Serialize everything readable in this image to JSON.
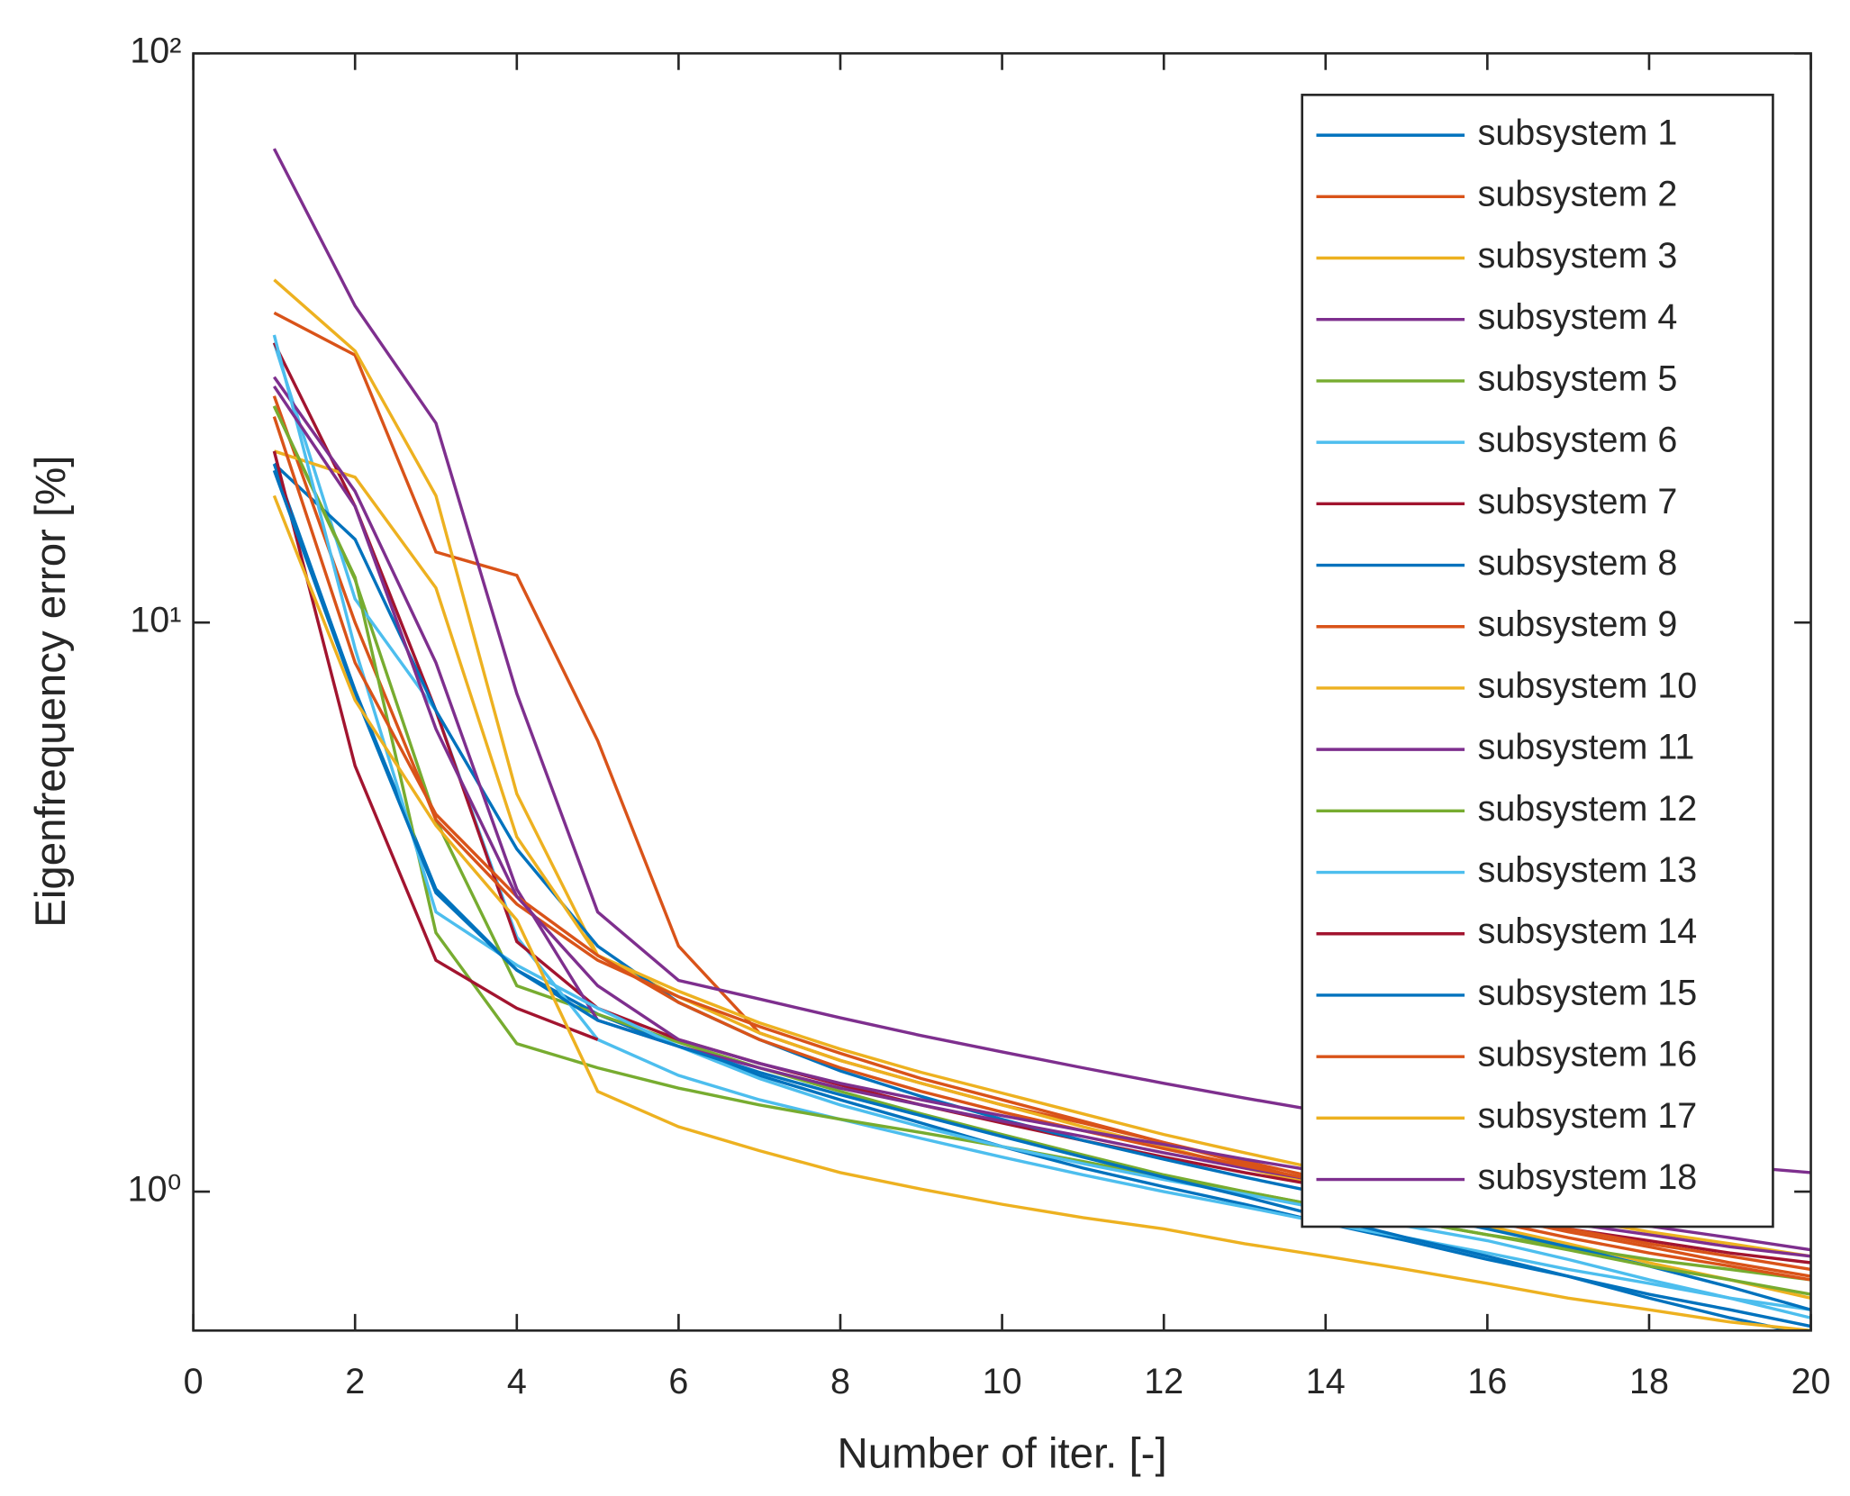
{
  "chart_data": {
    "type": "line",
    "xlabel": "Number of iter. [-]",
    "ylabel": "Eigenfrequency error [%]",
    "x": [
      1,
      2,
      3,
      4,
      5,
      6,
      7,
      8,
      9,
      10,
      11,
      12,
      13,
      14,
      15,
      16,
      17,
      18,
      19,
      20
    ],
    "xlim": [
      0,
      20
    ],
    "xticks": [
      0,
      2,
      4,
      6,
      8,
      10,
      12,
      14,
      16,
      18,
      20
    ],
    "ylim": [
      0.57,
      100
    ],
    "ylog": true,
    "yticks": [
      {
        "value": 1,
        "label": "10⁰"
      },
      {
        "value": 10,
        "label": "10¹"
      },
      {
        "value": 100,
        "label": "10²"
      }
    ],
    "legend": "upper right",
    "series": [
      {
        "name": "subsystem 1",
        "color": "#0072BD",
        "values": [
          19,
          7.6,
          3.4,
          2.45,
          2.05,
          1.8,
          1.6,
          1.45,
          1.32,
          1.2,
          1.1,
          1.02,
          0.95,
          0.88,
          0.82,
          0.76,
          0.71,
          0.66,
          0.62,
          0.58
        ]
      },
      {
        "name": "subsystem 2",
        "color": "#D95319",
        "values": [
          35,
          29.5,
          13.3,
          12.1,
          6.2,
          2.7,
          1.9,
          1.7,
          1.55,
          1.42,
          1.32,
          1.22,
          1.13,
          1.05,
          0.98,
          0.91,
          0.85,
          0.8,
          0.75,
          0.71
        ]
      },
      {
        "name": "subsystem 3",
        "color": "#EDB120",
        "values": [
          40,
          30,
          16.7,
          5,
          2.6,
          2.2,
          1.9,
          1.7,
          1.55,
          1.42,
          1.3,
          1.2,
          1.1,
          1.02,
          0.94,
          0.87,
          0.81,
          0.75,
          0.7,
          0.65
        ]
      },
      {
        "name": "subsystem 4",
        "color": "#7E2F8E",
        "values": [
          68,
          36,
          22.4,
          7.5,
          3.1,
          2.35,
          2.18,
          2.02,
          1.88,
          1.76,
          1.65,
          1.55,
          1.46,
          1.38,
          1.31,
          1.25,
          1.2,
          1.15,
          1.11,
          1.08
        ]
      },
      {
        "name": "subsystem 5",
        "color": "#77AC30",
        "values": [
          24,
          11.9,
          4.5,
          2.3,
          2.05,
          1.83,
          1.65,
          1.5,
          1.37,
          1.26,
          1.16,
          1.07,
          1.0,
          0.94,
          0.89,
          0.84,
          0.8,
          0.76,
          0.73,
          0.7
        ]
      },
      {
        "name": "subsystem 6",
        "color": "#4DBEEE",
        "values": [
          31,
          11,
          7,
          2.8,
          1.85,
          1.6,
          1.45,
          1.34,
          1.24,
          1.15,
          1.07,
          1.0,
          0.94,
          0.88,
          0.83,
          0.78,
          0.73,
          0.69,
          0.65,
          0.62
        ]
      },
      {
        "name": "subsystem 7",
        "color": "#A2142F",
        "values": [
          31,
          16,
          7,
          2.75,
          2.1,
          1.85,
          1.68,
          1.54,
          1.42,
          1.32,
          1.23,
          1.15,
          1.08,
          1.02,
          0.96,
          0.91,
          0.86,
          0.82,
          0.78,
          0.75
        ]
      },
      {
        "name": "subsystem 8",
        "color": "#0072BD",
        "values": [
          19,
          14,
          7,
          4,
          2.7,
          2.15,
          1.85,
          1.63,
          1.47,
          1.34,
          1.23,
          1.14,
          1.06,
          0.99,
          0.92,
          0.86,
          0.8,
          0.74,
          0.68,
          0.62
        ]
      },
      {
        "name": "subsystem 9",
        "color": "#D95319",
        "values": [
          25,
          10,
          4.5,
          3.2,
          2.55,
          2.2,
          1.95,
          1.75,
          1.58,
          1.45,
          1.33,
          1.22,
          1.12,
          1.03,
          0.96,
          0.89,
          0.83,
          0.78,
          0.74,
          0.7
        ]
      },
      {
        "name": "subsystem 10",
        "color": "#EDB120",
        "values": [
          20,
          18,
          11.5,
          4.2,
          2.6,
          2.25,
          1.98,
          1.78,
          1.62,
          1.49,
          1.37,
          1.26,
          1.17,
          1.09,
          1.02,
          0.96,
          0.9,
          0.85,
          0.81,
          0.77
        ]
      },
      {
        "name": "subsystem 11",
        "color": "#7E2F8E",
        "values": [
          27,
          17,
          8.5,
          3.4,
          2.0,
          1.8,
          1.65,
          1.52,
          1.42,
          1.33,
          1.25,
          1.17,
          1.1,
          1.04,
          0.98,
          0.93,
          0.88,
          0.84,
          0.8,
          0.77
        ]
      },
      {
        "name": "subsystem 12",
        "color": "#77AC30",
        "values": [
          24,
          12,
          2.85,
          1.82,
          1.65,
          1.52,
          1.42,
          1.34,
          1.27,
          1.2,
          1.13,
          1.06,
          1.0,
          0.94,
          0.89,
          0.84,
          0.79,
          0.74,
          0.7,
          0.66
        ]
      },
      {
        "name": "subsystem 13",
        "color": "#4DBEEE",
        "values": [
          32,
          9,
          3.1,
          2.5,
          2.1,
          1.8,
          1.58,
          1.42,
          1.3,
          1.2,
          1.12,
          1.05,
          0.99,
          0.93,
          0.87,
          0.82,
          0.76,
          0.7,
          0.65,
          0.6
        ]
      },
      {
        "name": "subsystem 14",
        "color": "#A2142F",
        "values": [
          20,
          5.6,
          2.55,
          2.1,
          1.85,
          null,
          null,
          null,
          null,
          null,
          null,
          null,
          null,
          null,
          null,
          null,
          null,
          null,
          null,
          null
        ]
      },
      {
        "name": "subsystem 15",
        "color": "#0072BD",
        "values": [
          18.5,
          7.5,
          3.35,
          2.45,
          2.0,
          1.8,
          1.62,
          1.48,
          1.36,
          1.25,
          1.15,
          1.06,
          0.98,
          0.9,
          0.83,
          0.77,
          0.71,
          0.65,
          0.6,
          0.56
        ]
      },
      {
        "name": "subsystem 16",
        "color": "#D95319",
        "values": [
          23,
          8.5,
          4.6,
          3.3,
          2.6,
          2.15,
          1.85,
          1.65,
          1.5,
          1.38,
          1.28,
          1.19,
          1.11,
          1.04,
          0.97,
          0.91,
          0.86,
          0.81,
          0.77,
          0.73
        ]
      },
      {
        "name": "subsystem 17",
        "color": "#EDB120",
        "values": [
          16.7,
          7.3,
          4.4,
          3.0,
          1.5,
          1.3,
          1.18,
          1.08,
          1.01,
          0.95,
          0.9,
          0.86,
          0.81,
          0.77,
          0.73,
          0.69,
          0.65,
          0.62,
          0.59,
          0.57
        ]
      },
      {
        "name": "subsystem 18",
        "color": "#7E2F8E",
        "values": [
          26,
          16,
          6.5,
          3.3,
          2.3,
          1.85,
          1.68,
          1.55,
          1.45,
          1.36,
          1.28,
          1.21,
          1.14,
          1.08,
          1.02,
          0.97,
          0.92,
          0.87,
          0.83,
          0.79
        ]
      }
    ]
  }
}
